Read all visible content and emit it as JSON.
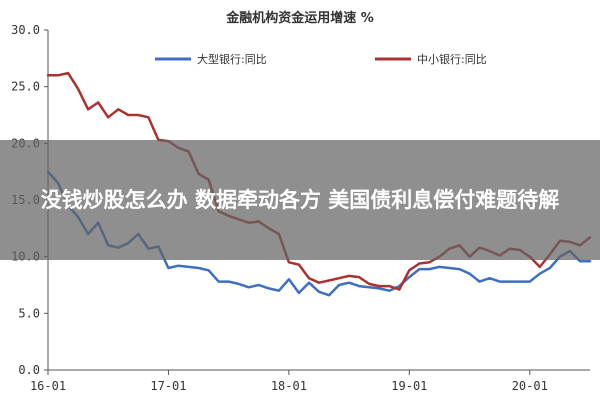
{
  "overlay": {
    "text": "没钱炒股怎么办 数据牵动各方 美国债利息偿付难题待解"
  },
  "chart_data": {
    "type": "line",
    "title": "金融机构资金运用增速 %",
    "xlabel": "",
    "ylabel": "",
    "xlim": [
      0,
      54
    ],
    "ylim": [
      0,
      30
    ],
    "yticks": [
      0,
      5,
      10,
      15,
      20,
      25,
      30
    ],
    "ytick_labels": [
      "0.0",
      "5.0",
      "10.0",
      "15.0",
      "20.0",
      "25.0",
      "30.0"
    ],
    "xticks": [
      0,
      12,
      24,
      36,
      48
    ],
    "xtick_labels": [
      "16-01",
      "17-01",
      "18-01",
      "19-01",
      "20-01"
    ],
    "grid": false,
    "legend_position": "top",
    "series": [
      {
        "name": "大型银行:同比",
        "color": "#3f6fbf",
        "x": [
          0,
          1,
          2,
          3,
          4,
          5,
          6,
          7,
          8,
          9,
          10,
          11,
          12,
          13,
          14,
          15,
          16,
          17,
          18,
          19,
          20,
          21,
          22,
          23,
          24,
          25,
          26,
          27,
          28,
          29,
          30,
          31,
          32,
          33,
          34,
          35,
          36,
          37,
          38,
          39,
          40,
          41,
          42,
          43,
          44,
          45,
          46,
          47,
          48,
          49,
          50,
          51,
          52,
          53,
          54
        ],
        "values": [
          17.5,
          16.5,
          14.5,
          13.5,
          12.0,
          13.0,
          11.0,
          10.8,
          11.2,
          12.0,
          10.7,
          10.9,
          9.0,
          9.2,
          9.1,
          9.0,
          8.8,
          7.8,
          7.8,
          7.6,
          7.3,
          7.5,
          7.2,
          7.0,
          8.0,
          6.8,
          7.7,
          6.9,
          6.6,
          7.5,
          7.7,
          7.4,
          7.3,
          7.2,
          7.0,
          7.4,
          8.2,
          8.9,
          8.9,
          9.1,
          9.0,
          8.9,
          8.5,
          7.8,
          8.1,
          7.8,
          7.8,
          7.8,
          7.8,
          8.5,
          9.0,
          10.0,
          10.5,
          9.6,
          9.6
        ]
      },
      {
        "name": "中小银行:同比",
        "color": "#a83232",
        "x": [
          0,
          1,
          2,
          3,
          4,
          5,
          6,
          7,
          8,
          9,
          10,
          11,
          12,
          13,
          14,
          15,
          16,
          17,
          18,
          19,
          20,
          21,
          22,
          23,
          24,
          25,
          26,
          27,
          28,
          29,
          30,
          31,
          32,
          33,
          34,
          35,
          36,
          37,
          38,
          39,
          40,
          41,
          42,
          43,
          44,
          45,
          46,
          47,
          48,
          49,
          50,
          51,
          52,
          53,
          54
        ],
        "values": [
          26.0,
          26.0,
          26.2,
          24.8,
          23.0,
          23.6,
          22.3,
          23.0,
          22.5,
          22.5,
          22.3,
          20.3,
          20.2,
          19.6,
          19.3,
          17.3,
          16.8,
          14.0,
          13.6,
          13.3,
          13.0,
          13.1,
          12.5,
          12.0,
          9.5,
          9.3,
          8.1,
          7.7,
          7.9,
          8.1,
          8.3,
          8.2,
          7.6,
          7.4,
          7.4,
          7.1,
          8.8,
          9.4,
          9.5,
          10.0,
          10.7,
          11.0,
          10.0,
          10.8,
          10.5,
          10.1,
          10.7,
          10.6,
          10.0,
          9.1,
          10.2,
          11.4,
          11.3,
          11.0,
          11.7
        ]
      }
    ]
  }
}
